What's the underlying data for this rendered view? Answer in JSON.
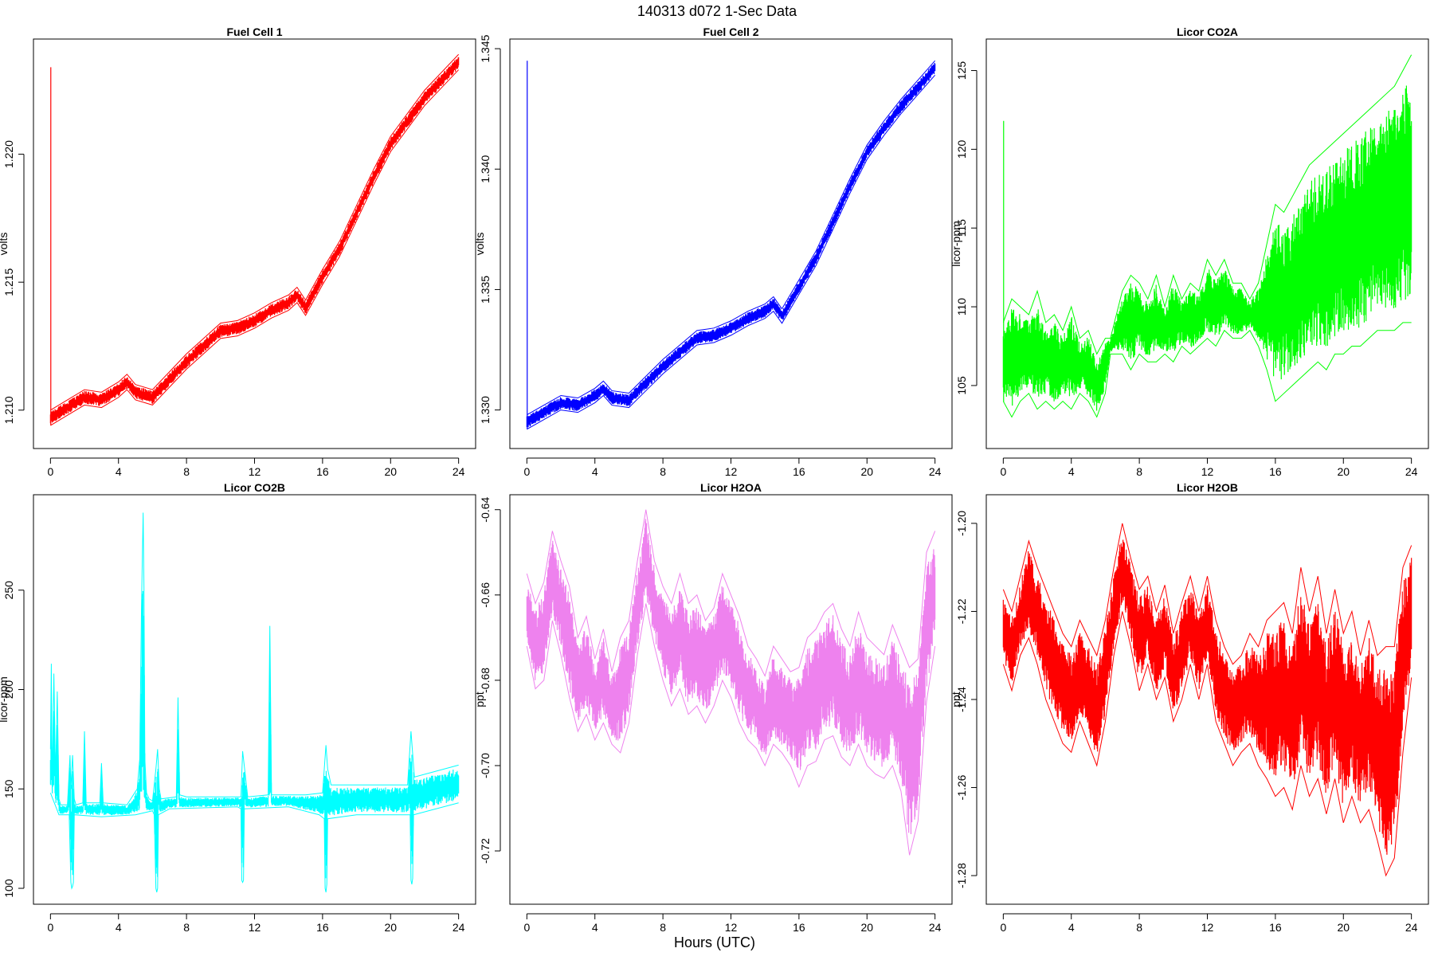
{
  "figure": {
    "title": "140313   d072   1-Sec Data",
    "xlabel": "Hours (UTC)"
  },
  "chart_data": [
    {
      "type": "line",
      "title": "Fuel Cell 1",
      "ylabel": "volts",
      "color": "#ff0000",
      "xlim": [
        -1,
        25
      ],
      "ylim": [
        1.2085,
        1.2245
      ],
      "xticks": [
        0,
        4,
        8,
        12,
        16,
        20,
        24
      ],
      "yticks": [
        1.21,
        1.215,
        1.22
      ],
      "ytick_labels": [
        "1.210",
        "1.215",
        "1.220"
      ],
      "spike": {
        "x": 0.02,
        "y": 1.2234
      },
      "upper": {
        "x": [
          0,
          1,
          2,
          3,
          4,
          4.5,
          5,
          6,
          7,
          8,
          9,
          10,
          11,
          12,
          13,
          14,
          14.5,
          15,
          16,
          17,
          18,
          19,
          20,
          21,
          22,
          23,
          24
        ],
        "y": [
          1.21,
          1.2104,
          1.2108,
          1.2107,
          1.2111,
          1.2114,
          1.211,
          1.2108,
          1.2115,
          1.2122,
          1.2128,
          1.2134,
          1.2135,
          1.2138,
          1.2142,
          1.2145,
          1.2148,
          1.2143,
          1.2155,
          1.2166,
          1.218,
          1.2194,
          1.2207,
          1.2216,
          1.2225,
          1.2232,
          1.2239
        ]
      },
      "lower": {
        "x": [
          0,
          1,
          2,
          3,
          4,
          4.5,
          5,
          6,
          7,
          8,
          9,
          10,
          11,
          12,
          13,
          14,
          14.5,
          15,
          16,
          17,
          18,
          19,
          20,
          21,
          22,
          23,
          24
        ],
        "y": [
          1.2094,
          1.2098,
          1.2102,
          1.2101,
          1.2105,
          1.2108,
          1.2104,
          1.2102,
          1.2109,
          1.2116,
          1.2122,
          1.2128,
          1.2129,
          1.2132,
          1.2136,
          1.2139,
          1.2142,
          1.2137,
          1.2149,
          1.216,
          1.2174,
          1.2188,
          1.2201,
          1.221,
          1.2219,
          1.2226,
          1.2233
        ]
      }
    },
    {
      "type": "line",
      "title": "Fuel Cell 2",
      "ylabel": "volts",
      "color": "#0000ff",
      "xlim": [
        -1,
        25
      ],
      "ylim": [
        1.3284,
        1.3454
      ],
      "xticks": [
        0,
        4,
        8,
        12,
        16,
        20,
        24
      ],
      "yticks": [
        1.33,
        1.335,
        1.34,
        1.345
      ],
      "ytick_labels": [
        "1.330",
        "1.335",
        "1.340",
        "1.345"
      ],
      "spike": {
        "x": 0.02,
        "y": 1.3445
      },
      "upper": {
        "x": [
          0,
          1,
          2,
          3,
          4,
          4.5,
          5,
          6,
          7,
          8,
          9,
          10,
          11,
          12,
          13,
          14,
          14.5,
          15,
          16,
          17,
          18,
          19,
          20,
          21,
          22,
          23,
          24
        ],
        "y": [
          1.3298,
          1.3302,
          1.3306,
          1.3305,
          1.3309,
          1.3312,
          1.3308,
          1.3307,
          1.3314,
          1.3321,
          1.3327,
          1.3333,
          1.3334,
          1.3337,
          1.3341,
          1.3344,
          1.3347,
          1.3342,
          1.3354,
          1.3366,
          1.3381,
          1.3396,
          1.341,
          1.342,
          1.3429,
          1.3437,
          1.3445
        ]
      },
      "lower": {
        "x": [
          0,
          1,
          2,
          3,
          4,
          4.5,
          5,
          6,
          7,
          8,
          9,
          10,
          11,
          12,
          13,
          14,
          14.5,
          15,
          16,
          17,
          18,
          19,
          20,
          21,
          22,
          23,
          24
        ],
        "y": [
          1.3292,
          1.3296,
          1.33,
          1.3299,
          1.3303,
          1.3306,
          1.3302,
          1.3301,
          1.3308,
          1.3315,
          1.3321,
          1.3327,
          1.3328,
          1.3331,
          1.3335,
          1.3338,
          1.3341,
          1.3336,
          1.3348,
          1.336,
          1.3375,
          1.339,
          1.3404,
          1.3414,
          1.3423,
          1.3431,
          1.3439
        ]
      }
    },
    {
      "type": "line",
      "title": "Licor CO2A",
      "ylabel": "licor-ppm",
      "color": "#00ff00",
      "xlim": [
        -1,
        25
      ],
      "ylim": [
        101,
        127
      ],
      "xticks": [
        0,
        4,
        8,
        12,
        16,
        20,
        24
      ],
      "yticks": [
        105,
        110,
        115,
        120,
        125
      ],
      "ytick_labels": [
        "105",
        "110",
        "115",
        "120",
        "125"
      ],
      "spike": {
        "x": 0.02,
        "y": 121.8
      },
      "upper": {
        "x": [
          0,
          0.5,
          1,
          1.5,
          2,
          2.5,
          3,
          3.5,
          4,
          4.5,
          5,
          5.5,
          6,
          6.3,
          7,
          7.5,
          8,
          8.5,
          9,
          9.5,
          10,
          10.5,
          11,
          11.5,
          12,
          12.5,
          13,
          13.5,
          14,
          14.5,
          15,
          15.5,
          16,
          16.5,
          17,
          17.5,
          18,
          18.5,
          19,
          19.5,
          20,
          20.5,
          21,
          21.5,
          22,
          22.5,
          23,
          23.5,
          24
        ],
        "y": [
          109,
          110.5,
          110,
          109.5,
          111,
          109,
          109.5,
          108.5,
          110,
          108,
          108.5,
          107,
          108,
          108,
          111,
          112,
          111.5,
          110.5,
          112,
          110,
          112,
          110.5,
          111.5,
          111,
          113,
          112,
          113,
          111.5,
          111.5,
          110.5,
          111.5,
          114,
          116.5,
          116,
          117,
          118,
          119,
          119.5,
          120,
          120.5,
          121,
          121.5,
          122,
          122.5,
          123,
          123.5,
          124,
          125,
          126
        ]
      },
      "lower": {
        "x": [
          0,
          0.5,
          1,
          1.5,
          2,
          2.5,
          3,
          3.5,
          4,
          4.5,
          5,
          5.5,
          6,
          6.3,
          7,
          7.5,
          8,
          8.5,
          9,
          9.5,
          10,
          10.5,
          11,
          11.5,
          12,
          12.5,
          13,
          13.5,
          14,
          14.5,
          15,
          15.5,
          16,
          16.5,
          17,
          17.5,
          18,
          18.5,
          19,
          19.5,
          20,
          20.5,
          21,
          21.5,
          22,
          22.5,
          23,
          23.5,
          24
        ],
        "y": [
          104,
          103,
          104,
          104.5,
          103.5,
          104,
          103.5,
          104,
          103.5,
          104.5,
          104,
          103,
          104.5,
          107,
          107,
          106,
          107,
          106.5,
          106.5,
          107,
          106.5,
          107.5,
          107,
          107.5,
          108,
          107.5,
          108.5,
          108,
          108,
          108.5,
          107.5,
          106,
          104,
          104.5,
          105,
          105.5,
          106,
          106.5,
          106,
          107,
          107,
          107.5,
          107.5,
          108,
          108.5,
          108.5,
          108.5,
          109,
          109
        ]
      }
    },
    {
      "type": "line",
      "title": "Licor CO2B",
      "ylabel": "licor-ppm",
      "color": "#00ffff",
      "xlim": [
        -1,
        25
      ],
      "ylim": [
        92,
        298
      ],
      "xticks": [
        0,
        4,
        8,
        12,
        16,
        20,
        24
      ],
      "yticks": [
        100,
        150,
        200,
        250
      ],
      "ytick_labels": [
        "100",
        "150",
        "200",
        "250"
      ],
      "upper": {
        "x": [
          0,
          0.05,
          0.1,
          0.2,
          0.3,
          0.4,
          0.5,
          0.6,
          1.0,
          1.15,
          1.2,
          1.3,
          1.4,
          1.5,
          1.9,
          2.0,
          2.1,
          2.9,
          3.0,
          3.1,
          4.5,
          5.1,
          5.25,
          5.35,
          5.45,
          5.5,
          5.55,
          5.65,
          5.8,
          6.0,
          6.2,
          6.3,
          6.4,
          6.5,
          7.4,
          7.5,
          7.6,
          8.0,
          11.2,
          11.3,
          11.6,
          12.8,
          12.9,
          13.0,
          15.0,
          16.0,
          16.2,
          16.3,
          16.5,
          21.0,
          21.2,
          21.4,
          24
        ],
        "y": [
          170,
          213,
          150,
          208,
          155,
          199,
          145,
          142,
          142,
          167,
          150,
          167,
          145,
          142,
          143,
          179,
          143,
          143,
          163,
          143,
          142,
          150,
          165,
          240,
          289,
          250,
          165,
          148,
          145,
          144,
          160,
          170,
          150,
          145,
          146,
          196,
          147,
          146,
          146,
          169,
          146,
          147,
          232,
          147,
          147,
          148,
          172,
          160,
          152,
          152,
          179,
          156,
          162
        ]
      },
      "lower": {
        "x": [
          0,
          0.5,
          1.1,
          1.2,
          1.25,
          1.3,
          1.35,
          1.4,
          3.0,
          5.0,
          6.0,
          6.1,
          6.2,
          6.25,
          6.3,
          6.35,
          7.0,
          11.0,
          11.2,
          11.25,
          11.3,
          11.35,
          11.4,
          14.0,
          15.8,
          16.1,
          16.15,
          16.2,
          16.25,
          16.3,
          18.0,
          21.0,
          21.15,
          21.2,
          21.25,
          21.3,
          21.35,
          24
        ],
        "y": [
          148,
          137,
          137,
          103,
          100,
          101,
          103,
          137,
          136,
          137,
          139,
          137,
          100,
          98,
          100,
          137,
          140,
          141,
          140,
          104,
          103,
          104,
          140,
          141,
          137,
          135,
          100,
          98,
          102,
          135,
          137,
          137,
          137,
          104,
          102,
          105,
          137,
          143
        ]
      }
    },
    {
      "type": "line",
      "title": "Licor H2OA",
      "ylabel": "ppt",
      "color": "#ee82ee",
      "xlim": [
        -1,
        25
      ],
      "ylim": [
        -0.7325,
        -0.6365
      ],
      "xticks": [
        0,
        4,
        8,
        12,
        16,
        20,
        24
      ],
      "yticks": [
        -0.72,
        -0.7,
        -0.68,
        -0.66,
        -0.64
      ],
      "ytick_labels": [
        "-0.72",
        "-0.70",
        "-0.68",
        "-0.66",
        "-0.64"
      ],
      "upper": {
        "x": [
          0,
          0.5,
          1,
          1.5,
          2,
          2.5,
          3,
          3.5,
          4,
          4.5,
          5,
          5.5,
          6,
          6.5,
          7,
          7.5,
          8,
          8.5,
          9,
          9.5,
          10,
          10.5,
          11,
          11.5,
          12,
          12.5,
          13,
          13.5,
          14,
          14.5,
          15,
          15.5,
          16,
          16.5,
          17,
          17.5,
          18,
          18.5,
          19,
          19.5,
          20,
          20.5,
          21,
          21.5,
          22,
          22.5,
          23,
          23.5,
          24
        ],
        "y": [
          -0.655,
          -0.662,
          -0.657,
          -0.645,
          -0.652,
          -0.658,
          -0.67,
          -0.665,
          -0.675,
          -0.668,
          -0.678,
          -0.67,
          -0.666,
          -0.652,
          -0.64,
          -0.652,
          -0.658,
          -0.662,
          -0.655,
          -0.662,
          -0.66,
          -0.666,
          -0.663,
          -0.655,
          -0.66,
          -0.665,
          -0.672,
          -0.675,
          -0.679,
          -0.672,
          -0.675,
          -0.678,
          -0.677,
          -0.67,
          -0.668,
          -0.664,
          -0.662,
          -0.668,
          -0.672,
          -0.664,
          -0.67,
          -0.672,
          -0.674,
          -0.667,
          -0.672,
          -0.677,
          -0.675,
          -0.65,
          -0.645
        ]
      },
      "lower": {
        "x": [
          0,
          0.5,
          1,
          1.5,
          2,
          2.5,
          3,
          3.5,
          4,
          4.5,
          5,
          5.5,
          6,
          6.5,
          7,
          7.5,
          8,
          8.5,
          9,
          9.5,
          10,
          10.5,
          11,
          11.5,
          12,
          12.5,
          13,
          13.5,
          14,
          14.5,
          15,
          15.5,
          16,
          16.5,
          17,
          17.5,
          18,
          18.5,
          19,
          19.5,
          20,
          20.5,
          21,
          21.5,
          22,
          22.5,
          23,
          23.5,
          24
        ],
        "y": [
          -0.672,
          -0.682,
          -0.68,
          -0.666,
          -0.674,
          -0.684,
          -0.692,
          -0.688,
          -0.694,
          -0.69,
          -0.695,
          -0.697,
          -0.69,
          -0.674,
          -0.662,
          -0.672,
          -0.68,
          -0.686,
          -0.682,
          -0.688,
          -0.686,
          -0.69,
          -0.686,
          -0.68,
          -0.684,
          -0.69,
          -0.694,
          -0.696,
          -0.7,
          -0.695,
          -0.697,
          -0.7,
          -0.705,
          -0.7,
          -0.699,
          -0.694,
          -0.693,
          -0.698,
          -0.7,
          -0.695,
          -0.7,
          -0.702,
          -0.703,
          -0.7,
          -0.706,
          -0.721,
          -0.713,
          -0.685,
          -0.672
        ]
      }
    },
    {
      "type": "line",
      "title": "Licor H2OB",
      "ylabel": "ppt",
      "color": "#ff0000",
      "xlim": [
        -1,
        25
      ],
      "ylim": [
        -1.2865,
        -1.1935
      ],
      "xticks": [
        0,
        4,
        8,
        12,
        16,
        20,
        24
      ],
      "yticks": [
        -1.28,
        -1.26,
        -1.24,
        -1.22,
        -1.2
      ],
      "ytick_labels": [
        "-1.28",
        "-1.26",
        "-1.24",
        "-1.22",
        "-1.20"
      ],
      "upper": {
        "x": [
          0,
          0.5,
          1,
          1.5,
          2,
          2.5,
          3,
          3.5,
          4,
          4.5,
          5,
          5.5,
          6,
          6.5,
          7,
          7.5,
          8,
          8.5,
          9,
          9.5,
          10,
          10.5,
          11,
          11.5,
          12,
          12.5,
          13,
          13.5,
          14,
          14.5,
          15,
          15.5,
          16,
          16.5,
          17,
          17.5,
          18,
          18.5,
          19,
          19.5,
          20,
          20.5,
          21,
          21.5,
          22,
          22.5,
          23,
          23.5,
          24
        ],
        "y": [
          -1.215,
          -1.22,
          -1.212,
          -1.204,
          -1.21,
          -1.215,
          -1.22,
          -1.225,
          -1.228,
          -1.222,
          -1.226,
          -1.23,
          -1.222,
          -1.21,
          -1.2,
          -1.208,
          -1.215,
          -1.212,
          -1.22,
          -1.214,
          -1.225,
          -1.218,
          -1.212,
          -1.22,
          -1.212,
          -1.222,
          -1.228,
          -1.232,
          -1.23,
          -1.225,
          -1.228,
          -1.222,
          -1.22,
          -1.218,
          -1.225,
          -1.21,
          -1.22,
          -1.212,
          -1.225,
          -1.215,
          -1.225,
          -1.22,
          -1.23,
          -1.222,
          -1.23,
          -1.228,
          -1.228,
          -1.21,
          -1.205
        ]
      },
      "lower": {
        "x": [
          0,
          0.5,
          1,
          1.5,
          2,
          2.5,
          3,
          3.5,
          4,
          4.5,
          5,
          5.5,
          6,
          6.5,
          7,
          7.5,
          8,
          8.5,
          9,
          9.5,
          10,
          10.5,
          11,
          11.5,
          12,
          12.5,
          13,
          13.5,
          14,
          14.5,
          15,
          15.5,
          16,
          16.5,
          17,
          17.5,
          18,
          18.5,
          19,
          19.5,
          20,
          20.5,
          21,
          21.5,
          22,
          22.5,
          23,
          23.5,
          24
        ],
        "y": [
          -1.232,
          -1.238,
          -1.23,
          -1.226,
          -1.232,
          -1.24,
          -1.245,
          -1.25,
          -1.252,
          -1.245,
          -1.25,
          -1.255,
          -1.245,
          -1.23,
          -1.22,
          -1.228,
          -1.238,
          -1.232,
          -1.24,
          -1.235,
          -1.245,
          -1.24,
          -1.232,
          -1.24,
          -1.232,
          -1.245,
          -1.25,
          -1.255,
          -1.252,
          -1.25,
          -1.255,
          -1.258,
          -1.262,
          -1.26,
          -1.265,
          -1.255,
          -1.262,
          -1.258,
          -1.266,
          -1.258,
          -1.268,
          -1.262,
          -1.268,
          -1.265,
          -1.272,
          -1.28,
          -1.276,
          -1.252,
          -1.235
        ]
      }
    }
  ]
}
